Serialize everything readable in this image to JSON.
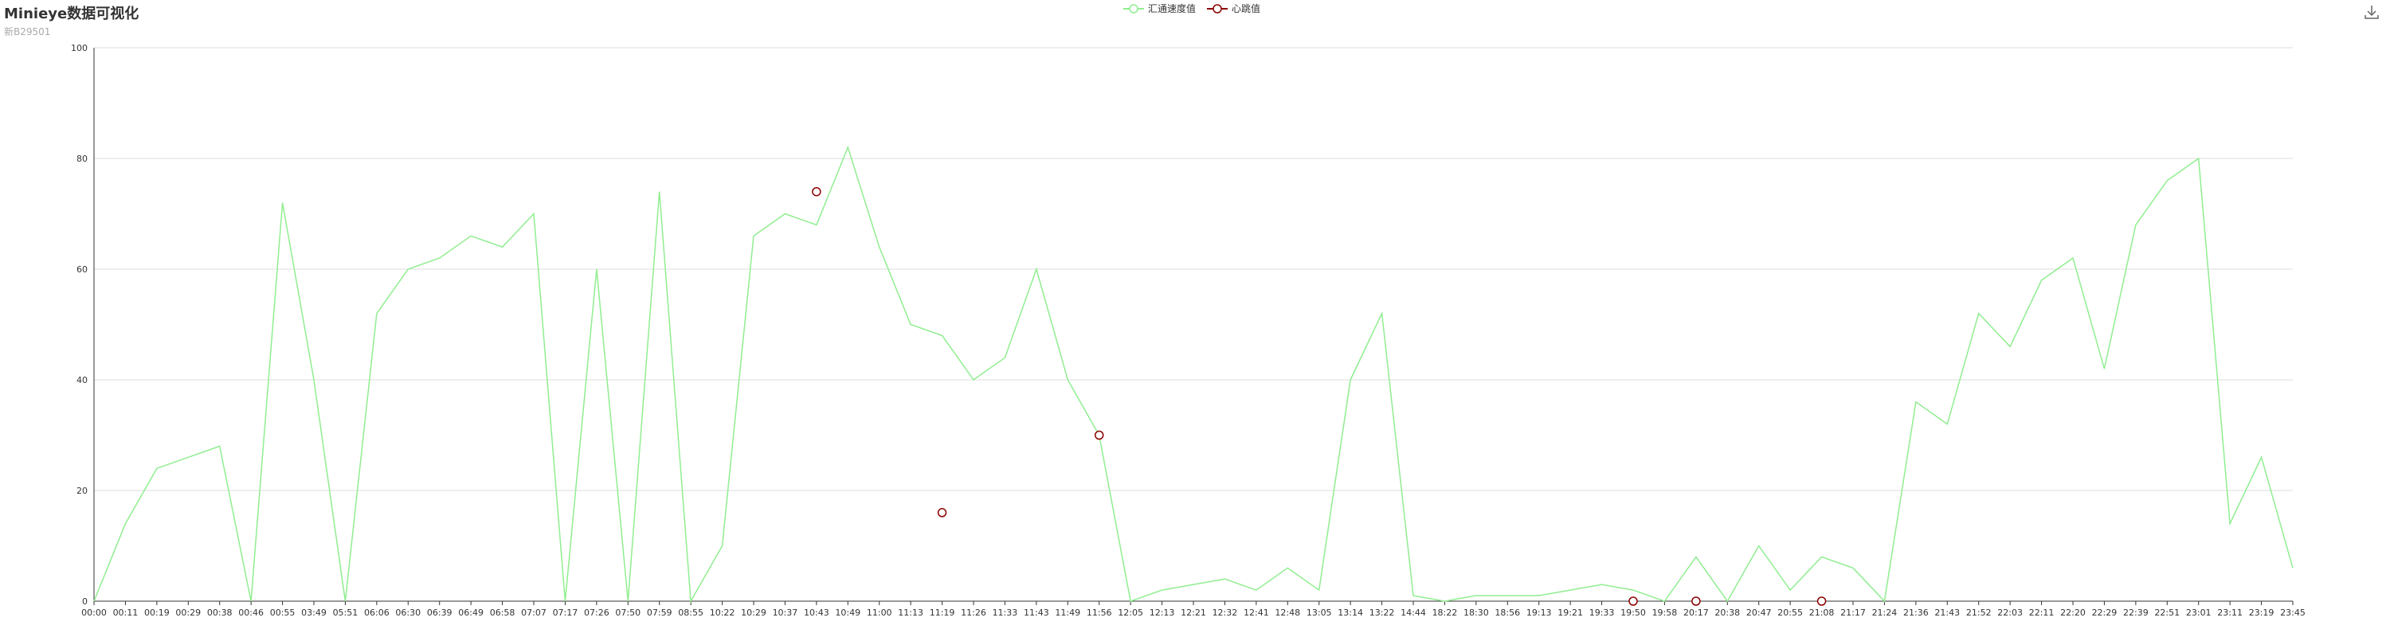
{
  "header": {
    "title": "Minieye数据可视化",
    "subtitle": "新B29501"
  },
  "toolbar": {
    "save_icon": "download-icon"
  },
  "colors": {
    "speed": "#90ee90",
    "heart": "#8b0000",
    "grid": "#dddddd",
    "axis": "#333333"
  },
  "chart_data": {
    "type": "line",
    "title": "Minieye数据可视化",
    "subtitle": "新B29501",
    "legend_position": "top-center",
    "grid": true,
    "ylim": [
      0,
      100
    ],
    "yticks": [
      0,
      20,
      40,
      60,
      80,
      100
    ],
    "categories": [
      "00:00",
      "00:11",
      "00:19",
      "00:29",
      "00:38",
      "00:46",
      "00:55",
      "03:49",
      "05:51",
      "06:06",
      "06:30",
      "06:39",
      "06:49",
      "06:58",
      "07:07",
      "07:17",
      "07:26",
      "07:50",
      "07:59",
      "08:55",
      "10:22",
      "10:29",
      "10:37",
      "10:43",
      "10:49",
      "11:00",
      "11:13",
      "11:19",
      "11:26",
      "11:33",
      "11:43",
      "11:49",
      "11:56",
      "12:05",
      "12:13",
      "12:21",
      "12:32",
      "12:41",
      "12:48",
      "13:05",
      "13:14",
      "13:22",
      "14:44",
      "18:22",
      "18:30",
      "18:56",
      "19:13",
      "19:21",
      "19:33",
      "19:50",
      "19:58",
      "20:17",
      "20:38",
      "20:47",
      "20:55",
      "21:08",
      "21:17",
      "21:24",
      "21:36",
      "21:43",
      "21:52",
      "22:03",
      "22:11",
      "22:20",
      "22:29",
      "22:39",
      "22:51",
      "23:01",
      "23:11",
      "23:19",
      "23:45"
    ],
    "series": [
      {
        "name": "汇通速度值",
        "values": [
          0,
          14,
          24,
          26,
          28,
          0,
          72,
          40,
          0,
          52,
          60,
          62,
          66,
          64,
          70,
          0,
          60,
          0,
          74,
          0,
          10,
          66,
          70,
          68,
          82,
          64,
          50,
          48,
          40,
          44,
          60,
          40,
          30,
          0,
          2,
          3,
          4,
          2,
          6,
          2,
          40,
          52,
          1,
          0,
          1,
          1,
          1,
          2,
          3,
          2,
          0,
          8,
          0,
          10,
          2,
          8,
          6,
          0,
          36,
          32,
          52,
          46,
          58,
          62,
          42,
          68,
          76,
          80,
          14,
          26,
          6
        ]
      },
      {
        "name": "心跳值",
        "values": [
          null,
          null,
          null,
          null,
          null,
          null,
          null,
          null,
          null,
          null,
          null,
          null,
          null,
          null,
          null,
          null,
          null,
          null,
          null,
          null,
          null,
          null,
          null,
          74,
          null,
          null,
          null,
          16,
          null,
          null,
          null,
          null,
          30,
          null,
          null,
          null,
          null,
          null,
          null,
          null,
          null,
          null,
          null,
          null,
          null,
          null,
          null,
          null,
          null,
          0,
          null,
          0,
          null,
          null,
          null,
          0,
          null,
          null,
          null,
          null,
          null,
          null,
          null,
          null,
          null,
          null,
          null,
          null,
          null,
          null,
          null
        ]
      }
    ]
  }
}
